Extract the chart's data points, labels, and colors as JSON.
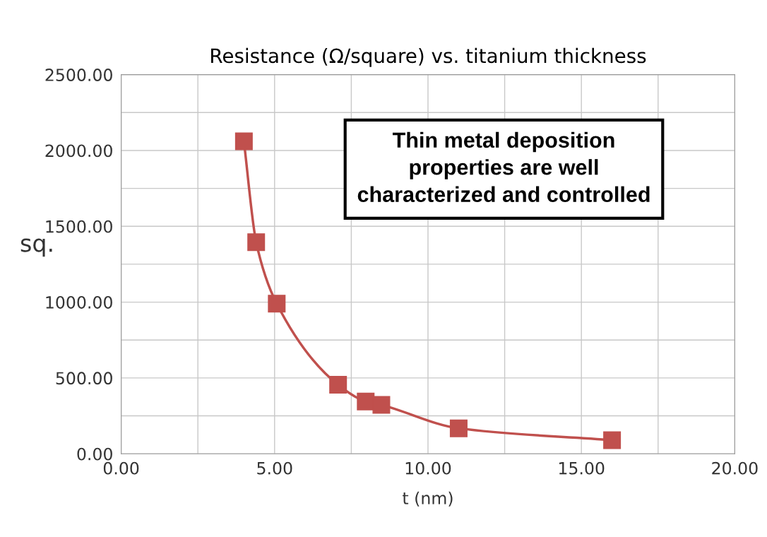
{
  "chart_data": {
    "type": "line",
    "title": "Resistance (Ω/square) vs. titanium thickness",
    "xlabel": "t (nm)",
    "ylabel": "sq.",
    "x": [
      4.0,
      4.4,
      5.07,
      7.07,
      7.97,
      8.48,
      11.0,
      16.0
    ],
    "series": [
      {
        "color": "#c0504d",
        "values": [
          2060,
          1395,
          990,
          455,
          345,
          322,
          168,
          90
        ]
      }
    ],
    "marker": "square",
    "line_style": "solid",
    "grid": true,
    "xlim": [
      0,
      20
    ],
    "xticks": [
      {
        "value": 0,
        "label": "0.00"
      },
      {
        "value": 2.5,
        "label": null
      },
      {
        "value": 5,
        "label": "5.00"
      },
      {
        "value": 7.5,
        "label": null
      },
      {
        "value": 10,
        "label": "10.00"
      },
      {
        "value": 12.5,
        "label": null
      },
      {
        "value": 15,
        "label": "15.00"
      },
      {
        "value": 17.5,
        "label": null
      },
      {
        "value": 20,
        "label": "20.00"
      }
    ],
    "ylim": [
      0,
      2500
    ],
    "yticks": [
      {
        "value": 0,
        "label": "0.00"
      },
      {
        "value": 250,
        "label": null
      },
      {
        "value": 500,
        "label": "500.00"
      },
      {
        "value": 750,
        "label": null
      },
      {
        "value": 1000,
        "label": "1000.00"
      },
      {
        "value": 1250,
        "label": null
      },
      {
        "value": 1500,
        "label": "1500.00"
      },
      {
        "value": 1750,
        "label": null
      },
      {
        "value": 2000,
        "label": "2000.00"
      },
      {
        "value": 2250,
        "label": null
      },
      {
        "value": 2500,
        "label": "2500.00"
      }
    ],
    "annotations": [
      "Thin metal deposition\nproperties are well\ncharacterized and controlled"
    ]
  }
}
